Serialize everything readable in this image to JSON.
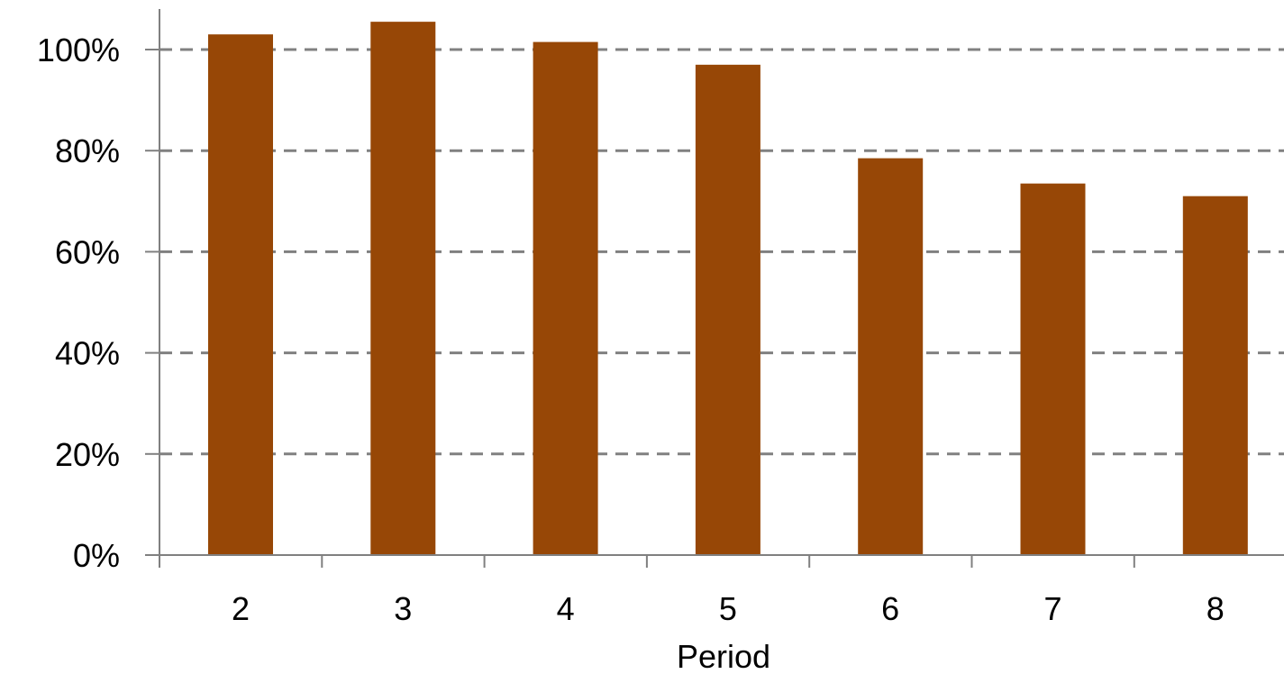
{
  "chart_data": {
    "type": "bar",
    "title": "",
    "xlabel": "Period",
    "ylabel": "",
    "categories": [
      "2",
      "3",
      "4",
      "5",
      "6",
      "7",
      "8"
    ],
    "values": [
      103,
      105.5,
      101.5,
      97,
      78.5,
      73.5,
      71
    ],
    "ylim": [
      0,
      100
    ],
    "y_ticks": [
      "0%",
      "20%",
      "40%",
      "60%",
      "80%",
      "100%"
    ],
    "y_tick_values": [
      0,
      20,
      40,
      60,
      80,
      100
    ],
    "grid": "horizontal dashed",
    "legend": "none",
    "bar_color": "#974706",
    "grid_color": "#808080",
    "axis_color": "#808080"
  }
}
